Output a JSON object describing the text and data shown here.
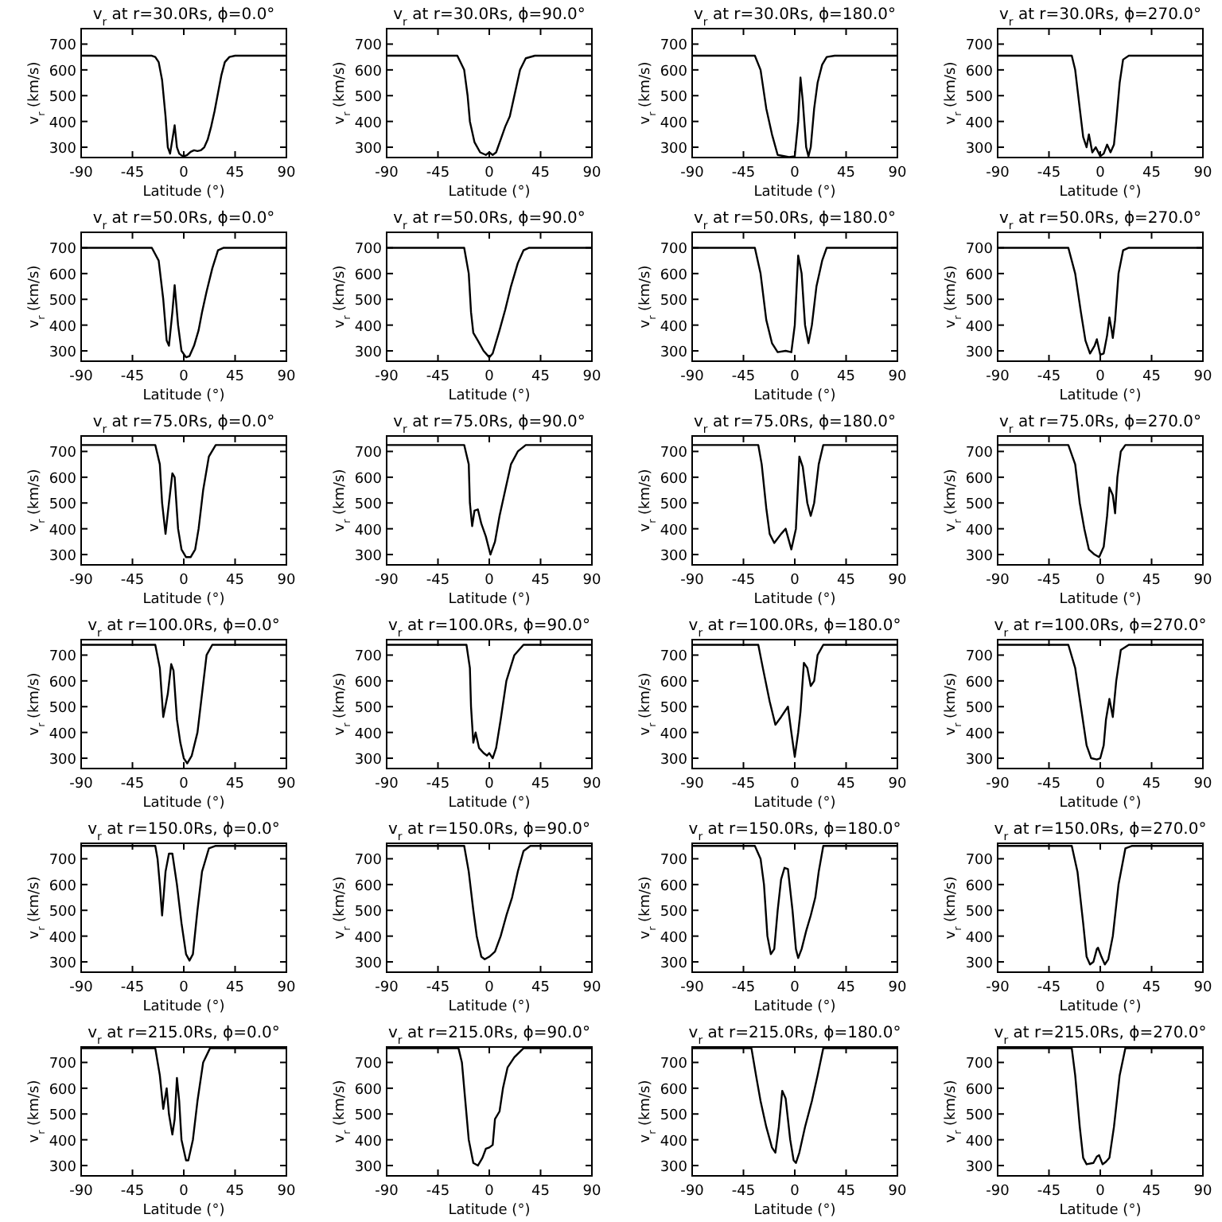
{
  "chart_data": [
    {
      "type": "line",
      "title": "v$_{r}$ at r=30.0Rs, ϕ=0.0°",
      "xlabel": "Latitude (°)",
      "ylabel": "v$_{r}$ (km/s)",
      "color": "#000000",
      "xlim": [
        -90,
        90
      ],
      "ylim": [
        260,
        760
      ],
      "xticks": [
        -90,
        -45,
        0,
        45,
        90
      ],
      "yticks": [
        300,
        400,
        500,
        600,
        700
      ],
      "x": [
        -90,
        -28,
        -25,
        -22,
        -19,
        -16,
        -14,
        -12,
        -10,
        -8,
        -6,
        -4,
        -2,
        0,
        3,
        6,
        9,
        12,
        15,
        18,
        21,
        24,
        27,
        30,
        33,
        36,
        40,
        45,
        90
      ],
      "values": [
        655,
        655,
        650,
        630,
        560,
        420,
        300,
        275,
        330,
        385,
        300,
        275,
        268,
        265,
        270,
        282,
        288,
        285,
        288,
        300,
        330,
        380,
        440,
        510,
        580,
        630,
        650,
        655,
        655
      ]
    },
    {
      "type": "line",
      "title": "v$_{r}$ at r=30.0Rs, ϕ=90.0°",
      "xlabel": "Latitude (°)",
      "ylabel": "v$_{r}$ (km/s)",
      "color": "#000000",
      "xlim": [
        -90,
        90
      ],
      "ylim": [
        260,
        760
      ],
      "xticks": [
        -90,
        -45,
        0,
        45,
        90
      ],
      "yticks": [
        300,
        400,
        500,
        600,
        700
      ],
      "x": [
        -90,
        -28,
        -22,
        -19,
        -17,
        -13,
        -8,
        -3,
        0,
        3,
        6,
        10,
        14,
        18,
        22,
        27,
        32,
        40,
        90
      ],
      "values": [
        655,
        655,
        600,
        500,
        400,
        320,
        280,
        270,
        280,
        270,
        280,
        330,
        380,
        420,
        500,
        600,
        645,
        655,
        655
      ]
    },
    {
      "type": "line",
      "title": "v$_{r}$ at r=30.0Rs, ϕ=180.0°",
      "xlabel": "Latitude (°)",
      "ylabel": "v$_{r}$ (km/s)",
      "color": "#000000",
      "xlim": [
        -90,
        90
      ],
      "ylim": [
        260,
        760
      ],
      "xticks": [
        -90,
        -45,
        0,
        45,
        90
      ],
      "yticks": [
        300,
        400,
        500,
        600,
        700
      ],
      "x": [
        -90,
        -35,
        -30,
        -25,
        -20,
        -15,
        -5,
        0,
        3,
        5,
        7,
        10,
        12,
        14,
        17,
        20,
        24,
        28,
        35,
        90
      ],
      "values": [
        655,
        655,
        600,
        450,
        350,
        270,
        262,
        265,
        400,
        570,
        480,
        300,
        265,
        300,
        450,
        550,
        620,
        650,
        655,
        655
      ]
    },
    {
      "type": "line",
      "title": "v$_{r}$ at r=30.0Rs, ϕ=270.0°",
      "xlabel": "Latitude (°)",
      "ylabel": "v$_{r}$ (km/s)",
      "color": "#000000",
      "xlim": [
        -90,
        90
      ],
      "ylim": [
        260,
        760
      ],
      "xticks": [
        -90,
        -45,
        0,
        45,
        90
      ],
      "yticks": [
        300,
        400,
        500,
        600,
        700
      ],
      "x": [
        -90,
        -25,
        -22,
        -18,
        -15,
        -12,
        -10,
        -7,
        -4,
        0,
        3,
        6,
        9,
        12,
        14,
        17,
        20,
        25,
        90
      ],
      "values": [
        655,
        655,
        600,
        450,
        340,
        300,
        350,
        280,
        300,
        265,
        275,
        310,
        280,
        310,
        400,
        550,
        640,
        655,
        655
      ]
    },
    {
      "type": "line",
      "title": "v$_{r}$ at r=50.0Rs, ϕ=0.0°",
      "xlabel": "Latitude (°)",
      "ylabel": "v$_{r}$ (km/s)",
      "color": "#000000",
      "xlim": [
        -90,
        90
      ],
      "ylim": [
        260,
        760
      ],
      "xticks": [
        -90,
        -45,
        0,
        45,
        90
      ],
      "yticks": [
        300,
        400,
        500,
        600,
        700
      ],
      "x": [
        -90,
        -28,
        -22,
        -18,
        -15,
        -13,
        -10,
        -8,
        -5,
        -2,
        2,
        5,
        9,
        13,
        16,
        20,
        25,
        30,
        35,
        90
      ],
      "values": [
        700,
        700,
        650,
        500,
        340,
        320,
        450,
        555,
        400,
        300,
        275,
        280,
        320,
        380,
        450,
        530,
        620,
        690,
        700,
        700
      ]
    },
    {
      "type": "line",
      "title": "v$_{r}$ at r=50.0Rs, ϕ=90.0°",
      "xlabel": "Latitude (°)",
      "ylabel": "v$_{r}$ (km/s)",
      "color": "#000000",
      "xlim": [
        -90,
        90
      ],
      "ylim": [
        260,
        760
      ],
      "xticks": [
        -90,
        -45,
        0,
        45,
        90
      ],
      "yticks": [
        300,
        400,
        500,
        600,
        700
      ],
      "x": [
        -90,
        -22,
        -18,
        -16,
        -14,
        -10,
        -5,
        0,
        3,
        9,
        14,
        19,
        25,
        30,
        35,
        90
      ],
      "values": [
        700,
        700,
        600,
        450,
        370,
        340,
        300,
        275,
        290,
        380,
        460,
        550,
        640,
        690,
        700,
        700
      ]
    },
    {
      "type": "line",
      "title": "v$_{r}$ at r=50.0Rs, ϕ=180.0°",
      "xlabel": "Latitude (°)",
      "ylabel": "v$_{r}$ (km/s)",
      "color": "#000000",
      "xlim": [
        -90,
        90
      ],
      "ylim": [
        260,
        760
      ],
      "xticks": [
        -90,
        -45,
        0,
        45,
        90
      ],
      "yticks": [
        300,
        400,
        500,
        600,
        700
      ],
      "x": [
        -90,
        -35,
        -30,
        -25,
        -20,
        -15,
        -8,
        -3,
        0,
        3,
        6,
        9,
        12,
        15,
        19,
        24,
        28,
        90
      ],
      "values": [
        700,
        700,
        600,
        420,
        330,
        295,
        300,
        295,
        400,
        670,
        600,
        400,
        330,
        400,
        550,
        650,
        700,
        700
      ]
    },
    {
      "type": "line",
      "title": "v$_{r}$ at r=50.0Rs, ϕ=270.0°",
      "xlabel": "Latitude (°)",
      "ylabel": "v$_{r}$ (km/s)",
      "color": "#000000",
      "xlim": [
        -90,
        90
      ],
      "ylim": [
        260,
        760
      ],
      "xticks": [
        -90,
        -45,
        0,
        45,
        90
      ],
      "yticks": [
        300,
        400,
        500,
        600,
        700
      ],
      "x": [
        -90,
        -28,
        -22,
        -17,
        -13,
        -9,
        -5,
        -3,
        0,
        3,
        6,
        8,
        10,
        11,
        13,
        16,
        20,
        25,
        90
      ],
      "values": [
        700,
        700,
        600,
        450,
        340,
        290,
        320,
        345,
        285,
        290,
        360,
        430,
        380,
        350,
        420,
        600,
        690,
        700,
        700
      ]
    },
    {
      "type": "line",
      "title": "v$_{r}$ at r=75.0Rs, ϕ=0.0°",
      "xlabel": "Latitude (°)",
      "ylabel": "v$_{r}$ (km/s)",
      "color": "#000000",
      "xlim": [
        -90,
        90
      ],
      "ylim": [
        260,
        760
      ],
      "xticks": [
        -90,
        -45,
        0,
        45,
        90
      ],
      "yticks": [
        300,
        400,
        500,
        600,
        700
      ],
      "x": [
        -90,
        -25,
        -21,
        -19,
        -16,
        -13,
        -10,
        -8,
        -5,
        -2,
        2,
        6,
        10,
        13,
        17,
        22,
        28,
        90
      ],
      "values": [
        725,
        725,
        650,
        500,
        380,
        500,
        615,
        600,
        400,
        320,
        290,
        290,
        320,
        400,
        550,
        680,
        725,
        725
      ]
    },
    {
      "type": "line",
      "title": "v$_{r}$ at r=75.0Rs, ϕ=90.0°",
      "xlabel": "Latitude (°)",
      "ylabel": "v$_{r}$ (km/s)",
      "color": "#000000",
      "xlim": [
        -90,
        90
      ],
      "ylim": [
        260,
        760
      ],
      "xticks": [
        -90,
        -45,
        0,
        45,
        90
      ],
      "yticks": [
        300,
        400,
        500,
        600,
        700
      ],
      "x": [
        -90,
        -22,
        -18,
        -17,
        -15,
        -13,
        -10,
        -7,
        -3,
        1,
        5,
        9,
        14,
        19,
        25,
        32,
        90
      ],
      "values": [
        725,
        725,
        650,
        500,
        410,
        470,
        475,
        420,
        370,
        300,
        350,
        450,
        550,
        650,
        700,
        725,
        725
      ]
    },
    {
      "type": "line",
      "title": "v$_{r}$ at r=75.0Rs, ϕ=180.0°",
      "xlabel": "Latitude (°)",
      "ylabel": "v$_{r}$ (km/s)",
      "color": "#000000",
      "xlim": [
        -90,
        90
      ],
      "ylim": [
        260,
        760
      ],
      "xticks": [
        -90,
        -45,
        0,
        45,
        90
      ],
      "yticks": [
        300,
        400,
        500,
        600,
        700
      ],
      "x": [
        -90,
        -32,
        -29,
        -25,
        -22,
        -18,
        -12,
        -8,
        -3,
        1,
        4,
        7,
        11,
        14,
        17,
        21,
        25,
        90
      ],
      "values": [
        725,
        725,
        650,
        480,
        380,
        345,
        380,
        400,
        320,
        400,
        680,
        640,
        500,
        450,
        500,
        650,
        725,
        725
      ]
    },
    {
      "type": "line",
      "title": "v$_{r}$ at r=75.0Rs, ϕ=270.0°",
      "xlabel": "Latitude (°)",
      "ylabel": "v$_{r}$ (km/s)",
      "color": "#000000",
      "xlim": [
        -90,
        90
      ],
      "ylim": [
        260,
        760
      ],
      "xticks": [
        -90,
        -45,
        0,
        45,
        90
      ],
      "yticks": [
        300,
        400,
        500,
        600,
        700
      ],
      "x": [
        -90,
        -28,
        -22,
        -18,
        -14,
        -10,
        -5,
        -1,
        3,
        6,
        8,
        11,
        13,
        15,
        18,
        22,
        90
      ],
      "values": [
        725,
        725,
        650,
        500,
        400,
        320,
        300,
        290,
        330,
        450,
        560,
        530,
        460,
        600,
        700,
        725,
        725
      ]
    },
    {
      "type": "line",
      "title": "v$_{r}$ at r=100.0Rs, ϕ=0.0°",
      "xlabel": "Latitude (°)",
      "ylabel": "v$_{r}$ (km/s)",
      "color": "#000000",
      "xlim": [
        -90,
        90
      ],
      "ylim": [
        260,
        760
      ],
      "xticks": [
        -90,
        -45,
        0,
        45,
        90
      ],
      "yticks": [
        300,
        400,
        500,
        600,
        700
      ],
      "x": [
        -90,
        -25,
        -21,
        -18,
        -14,
        -11,
        -9,
        -6,
        -3,
        0,
        3,
        7,
        12,
        16,
        20,
        25,
        90
      ],
      "values": [
        740,
        740,
        650,
        460,
        550,
        665,
        640,
        450,
        360,
        300,
        280,
        310,
        400,
        550,
        700,
        740,
        740
      ]
    },
    {
      "type": "line",
      "title": "v$_{r}$ at r=100.0Rs, ϕ=90.0°",
      "xlabel": "Latitude (°)",
      "ylabel": "v$_{r}$ (km/s)",
      "color": "#000000",
      "xlim": [
        -90,
        90
      ],
      "ylim": [
        260,
        760
      ],
      "xticks": [
        -90,
        -45,
        0,
        45,
        90
      ],
      "yticks": [
        300,
        400,
        500,
        600,
        700
      ],
      "x": [
        -90,
        -20,
        -17,
        -16,
        -14,
        -12,
        -9,
        -5,
        -2,
        0,
        3,
        6,
        10,
        15,
        22,
        30,
        90
      ],
      "values": [
        740,
        740,
        650,
        500,
        360,
        400,
        340,
        320,
        310,
        320,
        300,
        340,
        450,
        600,
        700,
        740,
        740
      ]
    },
    {
      "type": "line",
      "title": "v$_{r}$ at r=100.0Rs, ϕ=180.0°",
      "xlabel": "Latitude (°)",
      "ylabel": "v$_{r}$ (km/s)",
      "color": "#000000",
      "xlim": [
        -90,
        90
      ],
      "ylim": [
        260,
        760
      ],
      "xticks": [
        -90,
        -45,
        0,
        45,
        90
      ],
      "yticks": [
        300,
        400,
        500,
        600,
        700
      ],
      "x": [
        -90,
        -32,
        -28,
        -22,
        -17,
        -12,
        -6,
        -3,
        0,
        3,
        5,
        8,
        11,
        14,
        17,
        20,
        25,
        90
      ],
      "values": [
        740,
        740,
        650,
        520,
        430,
        460,
        500,
        400,
        305,
        400,
        480,
        670,
        650,
        580,
        600,
        700,
        740,
        740
      ]
    },
    {
      "type": "line",
      "title": "v$_{r}$ at r=100.0Rs, ϕ=270.0°",
      "xlabel": "Latitude (°)",
      "ylabel": "v$_{r}$ (km/s)",
      "color": "#000000",
      "xlim": [
        -90,
        90
      ],
      "ylim": [
        260,
        760
      ],
      "xticks": [
        -90,
        -45,
        0,
        45,
        90
      ],
      "yticks": [
        300,
        400,
        500,
        600,
        700
      ],
      "x": [
        -90,
        -28,
        -22,
        -17,
        -12,
        -8,
        -3,
        0,
        3,
        5,
        8,
        11,
        14,
        18,
        25,
        90
      ],
      "values": [
        740,
        740,
        650,
        500,
        350,
        300,
        295,
        300,
        350,
        450,
        530,
        460,
        600,
        720,
        740,
        740
      ]
    },
    {
      "type": "line",
      "title": "v$_{r}$ at r=150.0Rs, ϕ=0.0°",
      "xlabel": "Latitude (°)",
      "ylabel": "v$_{r}$ (km/s)",
      "color": "#000000",
      "xlim": [
        -90,
        90
      ],
      "ylim": [
        260,
        760
      ],
      "xticks": [
        -90,
        -45,
        0,
        45,
        90
      ],
      "yticks": [
        300,
        400,
        500,
        600,
        700
      ],
      "x": [
        -90,
        -25,
        -23,
        -21,
        -19,
        -16,
        -13,
        -10,
        -6,
        -2,
        2,
        5,
        8,
        12,
        16,
        22,
        28,
        90
      ],
      "values": [
        750,
        750,
        700,
        600,
        480,
        650,
        720,
        720,
        600,
        450,
        330,
        305,
        330,
        500,
        650,
        740,
        750,
        750
      ]
    },
    {
      "type": "line",
      "title": "v$_{r}$ at r=150.0Rs, ϕ=90.0°",
      "xlabel": "Latitude (°)",
      "ylabel": "v$_{r}$ (km/s)",
      "color": "#000000",
      "xlim": [
        -90,
        90
      ],
      "ylim": [
        260,
        760
      ],
      "xticks": [
        -90,
        -45,
        0,
        45,
        90
      ],
      "yticks": [
        300,
        400,
        500,
        600,
        700
      ],
      "x": [
        -90,
        -22,
        -18,
        -14,
        -11,
        -7,
        -4,
        0,
        5,
        10,
        15,
        20,
        25,
        30,
        36,
        90
      ],
      "values": [
        750,
        750,
        650,
        500,
        400,
        320,
        310,
        320,
        340,
        400,
        480,
        550,
        650,
        730,
        750,
        750
      ]
    },
    {
      "type": "line",
      "title": "v$_{r}$ at r=150.0Rs, ϕ=180.0°",
      "xlabel": "Latitude (°)",
      "ylabel": "v$_{r}$ (km/s)",
      "color": "#000000",
      "xlim": [
        -90,
        90
      ],
      "ylim": [
        260,
        760
      ],
      "xticks": [
        -90,
        -45,
        0,
        45,
        90
      ],
      "yticks": [
        300,
        400,
        500,
        600,
        700
      ],
      "x": [
        -90,
        -35,
        -30,
        -27,
        -24,
        -21,
        -18,
        -15,
        -12,
        -9,
        -6,
        -2,
        1,
        3,
        6,
        10,
        14,
        18,
        21,
        25,
        90
      ],
      "values": [
        750,
        750,
        700,
        600,
        400,
        330,
        350,
        500,
        620,
        665,
        660,
        500,
        350,
        315,
        350,
        420,
        480,
        550,
        650,
        750,
        750
      ]
    },
    {
      "type": "line",
      "title": "v$_{r}$ at r=150.0Rs, ϕ=270.0°",
      "xlabel": "Latitude (°)",
      "ylabel": "v$_{r}$ (km/s)",
      "color": "#000000",
      "xlim": [
        -90,
        90
      ],
      "ylim": [
        260,
        760
      ],
      "xticks": [
        -90,
        -45,
        0,
        45,
        90
      ],
      "yticks": [
        300,
        400,
        500,
        600,
        700
      ],
      "x": [
        -90,
        -25,
        -20,
        -15,
        -12,
        -9,
        -6,
        -3,
        -2,
        1,
        4,
        7,
        11,
        16,
        22,
        28,
        90
      ],
      "values": [
        750,
        750,
        650,
        450,
        320,
        290,
        300,
        350,
        355,
        320,
        290,
        310,
        400,
        600,
        740,
        750,
        750
      ]
    },
    {
      "type": "line",
      "title": "v$_{r}$ at r=215.0Rs, ϕ=0.0°",
      "xlabel": "Latitude (°)",
      "ylabel": "v$_{r}$ (km/s)",
      "color": "#000000",
      "xlim": [
        -90,
        90
      ],
      "ylim": [
        260,
        760
      ],
      "xticks": [
        -90,
        -45,
        0,
        45,
        90
      ],
      "yticks": [
        300,
        400,
        500,
        600,
        700
      ],
      "x": [
        -90,
        -25,
        -21,
        -18,
        -15,
        -13,
        -10,
        -8,
        -6,
        -4,
        -2,
        2,
        4,
        8,
        12,
        17,
        23,
        90
      ],
      "values": [
        755,
        755,
        650,
        520,
        600,
        500,
        420,
        480,
        640,
        550,
        400,
        320,
        320,
        400,
        550,
        700,
        755,
        755
      ]
    },
    {
      "type": "line",
      "title": "v$_{r}$ at r=215.0Rs, ϕ=90.0°",
      "xlabel": "Latitude (°)",
      "ylabel": "v$_{r}$ (km/s)",
      "color": "#000000",
      "xlim": [
        -90,
        90
      ],
      "ylim": [
        260,
        760
      ],
      "xticks": [
        -90,
        -45,
        0,
        45,
        90
      ],
      "yticks": [
        300,
        400,
        500,
        600,
        700
      ],
      "x": [
        -90,
        -27,
        -24,
        -21,
        -18,
        -14,
        -10,
        -6,
        -3,
        0,
        3,
        5,
        9,
        12,
        16,
        22,
        30,
        90
      ],
      "values": [
        755,
        755,
        700,
        550,
        400,
        310,
        300,
        330,
        365,
        370,
        380,
        480,
        510,
        600,
        680,
        720,
        755,
        755
      ]
    },
    {
      "type": "line",
      "title": "v$_{r}$ at r=215.0Rs, ϕ=180.0°",
      "xlabel": "Latitude (°)",
      "ylabel": "v$_{r}$ (km/s)",
      "color": "#000000",
      "xlim": [
        -90,
        90
      ],
      "ylim": [
        260,
        760
      ],
      "xticks": [
        -90,
        -45,
        0,
        45,
        90
      ],
      "yticks": [
        300,
        400,
        500,
        600,
        700
      ],
      "x": [
        -90,
        -38,
        -34,
        -30,
        -25,
        -20,
        -17,
        -14,
        -11,
        -8,
        -4,
        -1,
        1,
        4,
        9,
        15,
        20,
        25,
        90
      ],
      "values": [
        755,
        755,
        650,
        550,
        450,
        370,
        350,
        450,
        590,
        560,
        400,
        320,
        310,
        350,
        450,
        550,
        650,
        755,
        755
      ]
    },
    {
      "type": "line",
      "title": "v$_{r}$ at r=215.0Rs, ϕ=270.0°",
      "xlabel": "Latitude (°)",
      "ylabel": "v$_{r}$ (km/s)",
      "color": "#000000",
      "xlim": [
        -90,
        90
      ],
      "ylim": [
        260,
        760
      ],
      "xticks": [
        -90,
        -45,
        0,
        45,
        90
      ],
      "yticks": [
        300,
        400,
        500,
        600,
        700
      ],
      "x": [
        -90,
        -25,
        -22,
        -18,
        -15,
        -12,
        -6,
        -3,
        -1,
        2,
        5,
        8,
        12,
        17,
        22,
        90
      ],
      "values": [
        755,
        755,
        650,
        450,
        330,
        305,
        310,
        335,
        340,
        305,
        315,
        330,
        450,
        650,
        755,
        755
      ]
    }
  ]
}
